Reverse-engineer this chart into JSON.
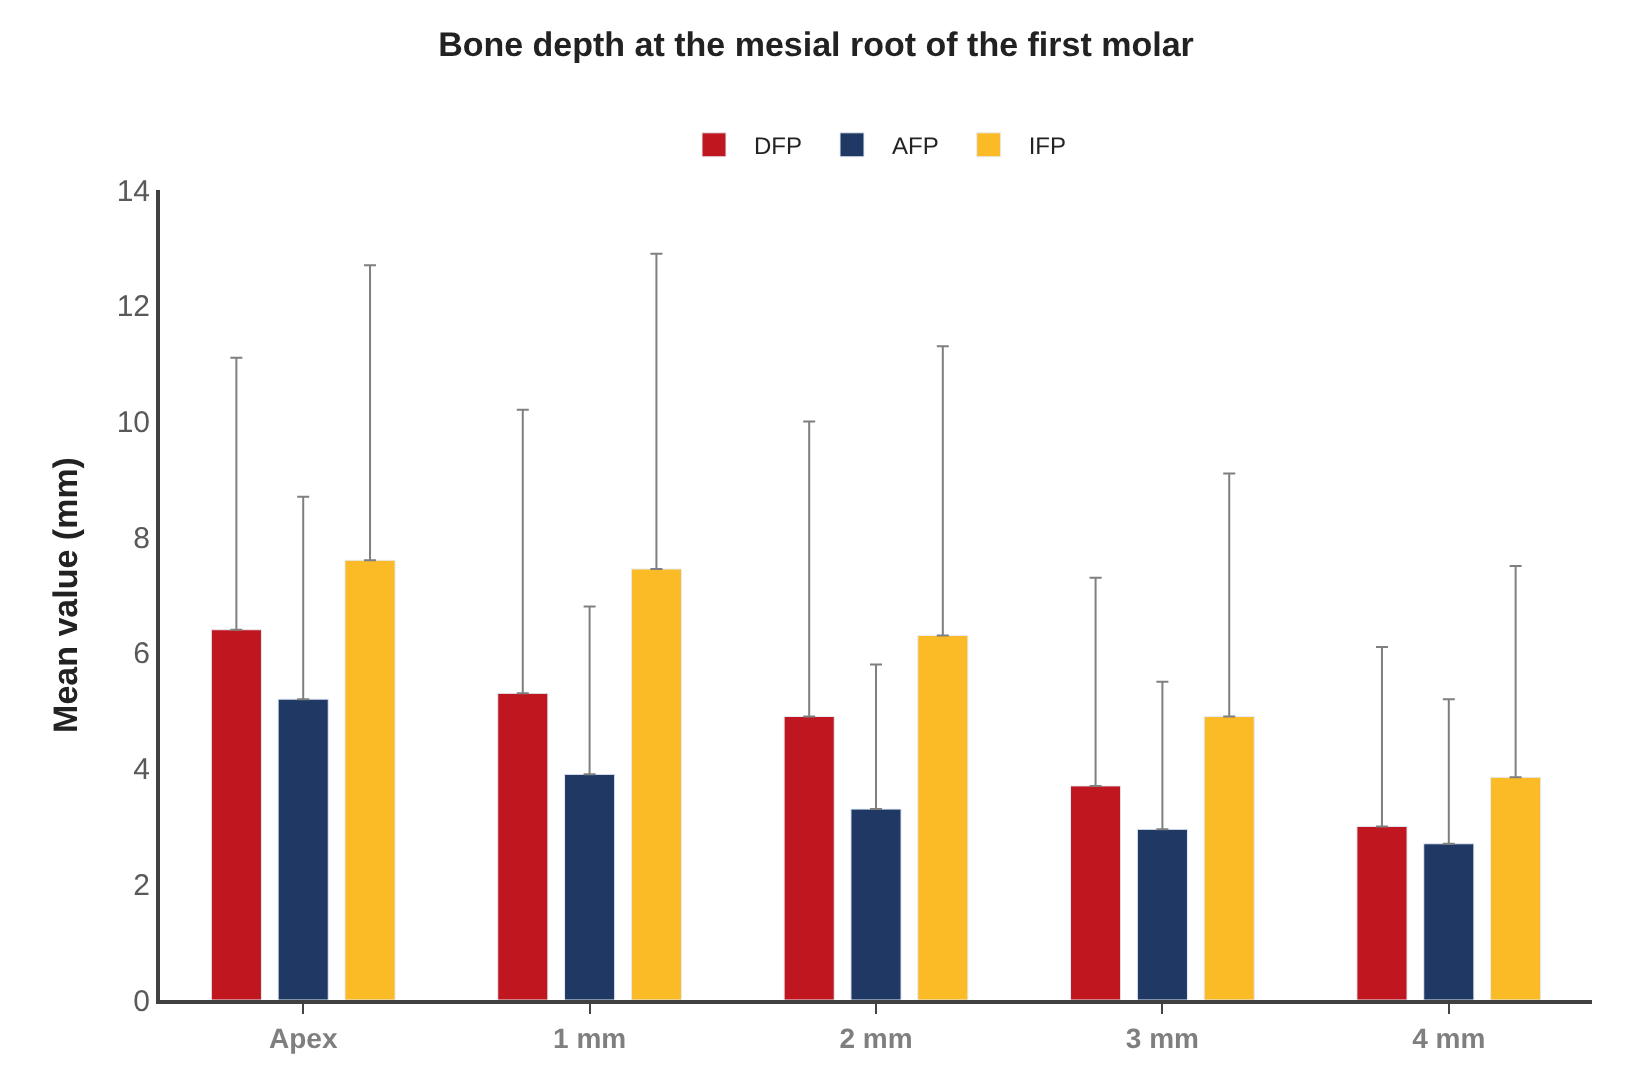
{
  "chart_data": {
    "type": "bar",
    "title": "Bone depth at the mesial root of the first molar",
    "ylabel": "Mean value (mm)",
    "categories": [
      "Apex",
      "1 mm",
      "2 mm",
      "3 mm",
      "4 mm"
    ],
    "series": [
      {
        "name": "DFP",
        "color": "#c0161f",
        "values": [
          6.4,
          5.3,
          4.9,
          3.7,
          3.0
        ],
        "errors": [
          [
            6.4,
            11.1
          ],
          [
            5.3,
            10.2
          ],
          [
            4.9,
            10.0
          ],
          [
            3.7,
            7.3
          ],
          [
            3.0,
            6.1
          ]
        ]
      },
      {
        "name": "AFP",
        "color": "#1f3864",
        "values": [
          5.2,
          3.9,
          3.3,
          2.95,
          2.7
        ],
        "errors": [
          [
            5.2,
            8.7
          ],
          [
            3.9,
            6.8
          ],
          [
            3.3,
            5.8
          ],
          [
            2.95,
            5.5
          ],
          [
            2.7,
            5.2
          ]
        ]
      },
      {
        "name": "IFP",
        "color": "#fbbb27",
        "values": [
          7.6,
          7.45,
          6.3,
          4.9,
          3.85
        ],
        "errors": [
          [
            7.6,
            12.7
          ],
          [
            7.45,
            12.9
          ],
          [
            6.3,
            11.3
          ],
          [
            4.9,
            9.1
          ],
          [
            3.85,
            7.5
          ]
        ]
      }
    ],
    "ylim": [
      0,
      14
    ],
    "yticks": [
      0,
      2,
      4,
      6,
      8,
      10,
      12,
      14
    ],
    "legend": "top"
  }
}
